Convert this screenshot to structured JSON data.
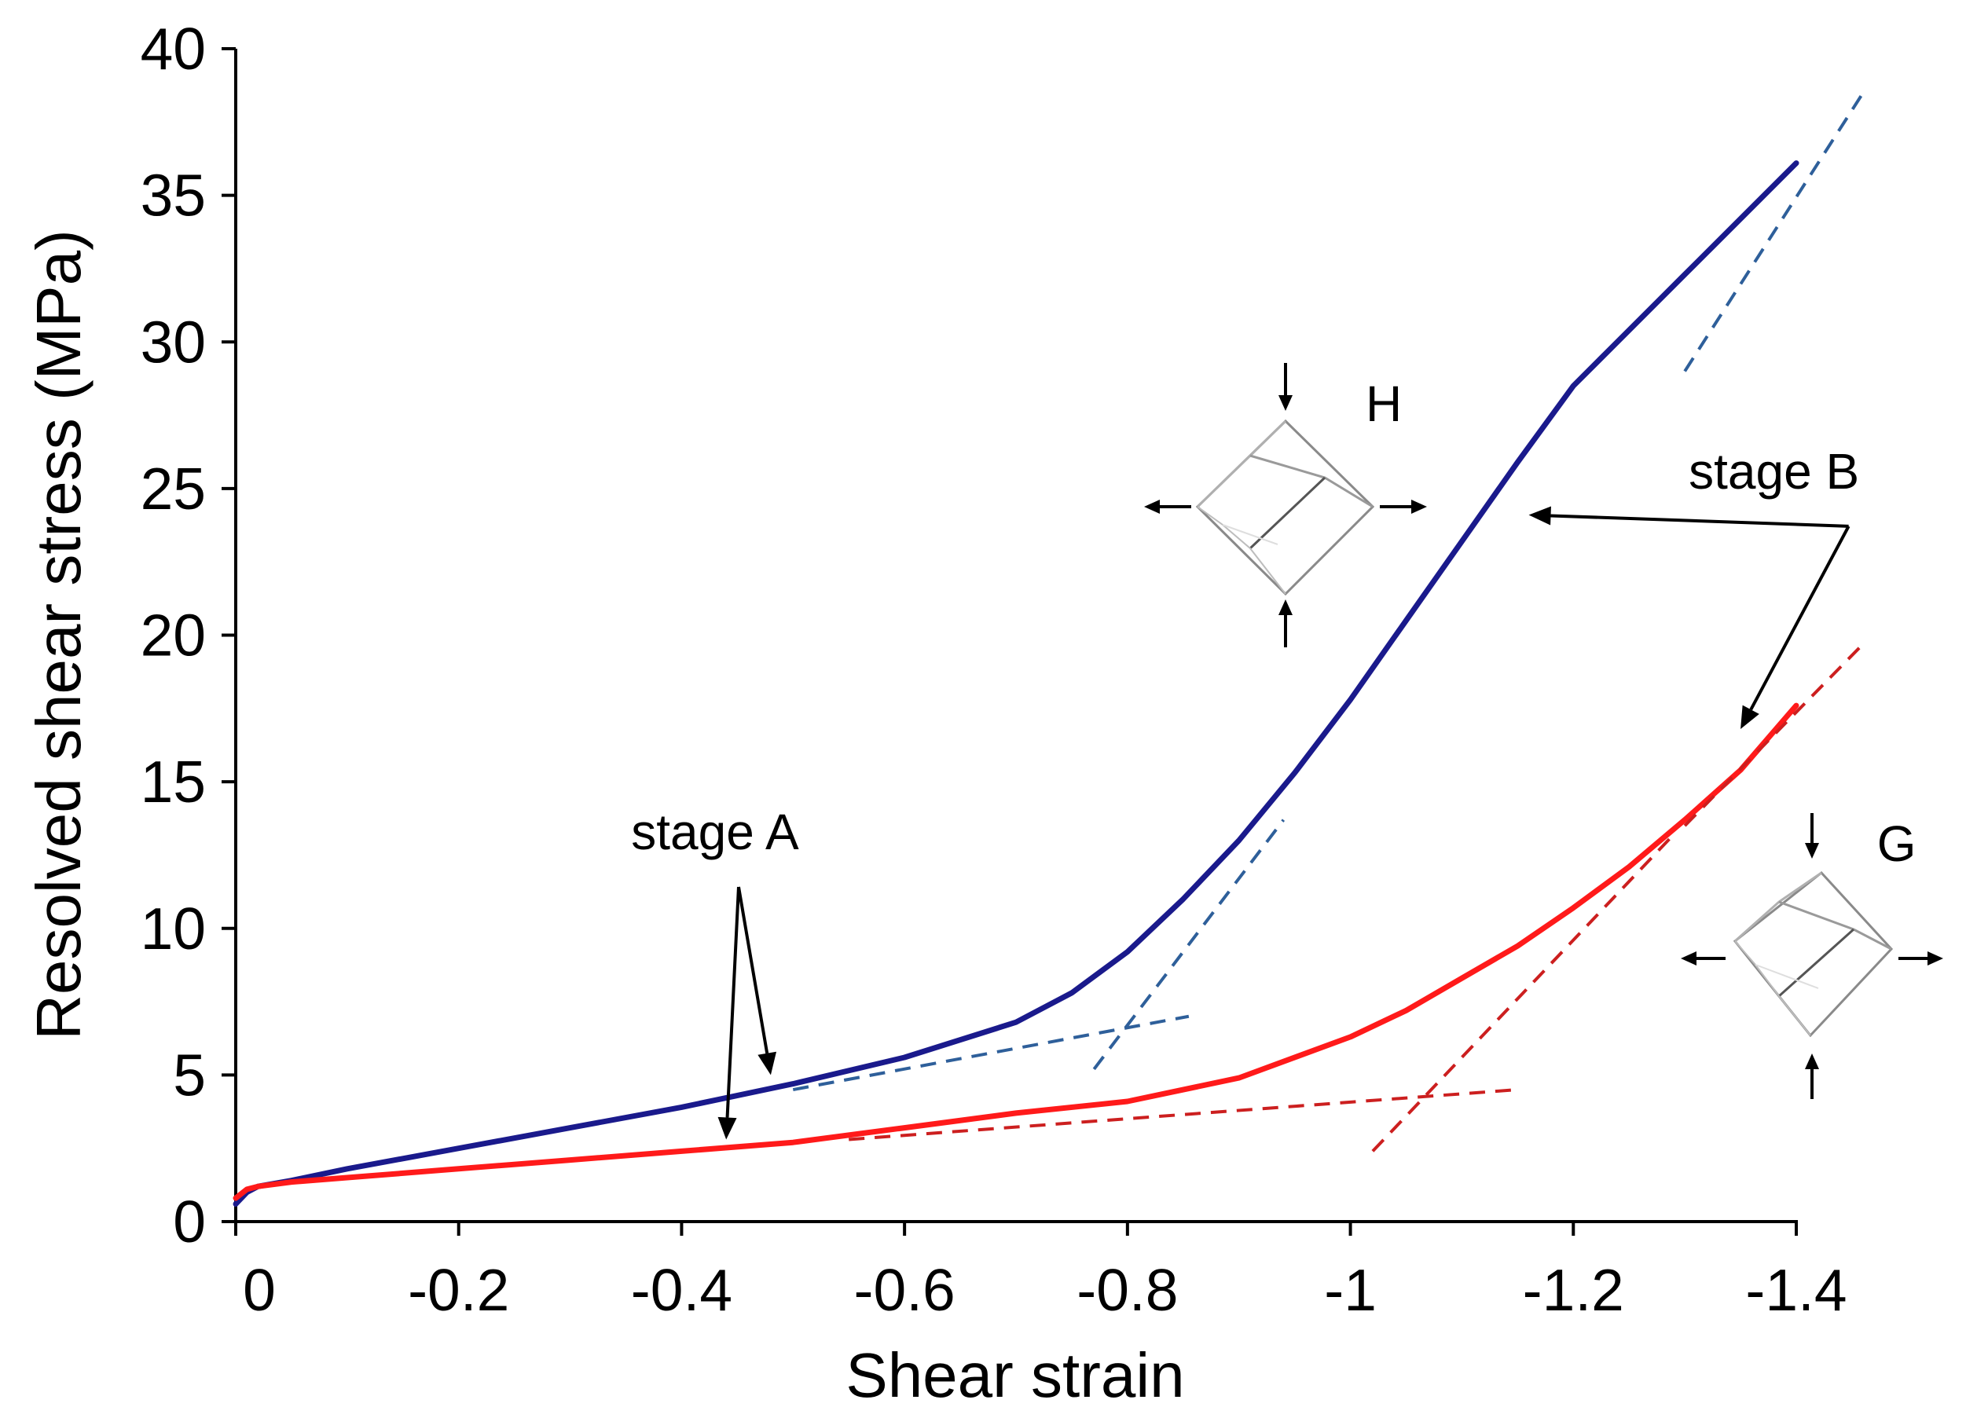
{
  "chart_data": {
    "type": "line",
    "title": "",
    "xlabel": "Shear strain",
    "ylabel": "Resolved shear stress (MPa)",
    "xlim": [
      0.02,
      -1.44
    ],
    "ylim": [
      0,
      40
    ],
    "grid": false,
    "x_ticks": [
      0,
      -0.2,
      -0.4,
      -0.6,
      -0.8,
      -1,
      -1.2,
      -1.4
    ],
    "x_tick_labels": [
      "0",
      "-0.2",
      "-0.4",
      "-0.6",
      "-0.8",
      "-1",
      "-1.2",
      "-1.4"
    ],
    "y_ticks": [
      0,
      5,
      10,
      15,
      20,
      25,
      30,
      35,
      40
    ],
    "y_tick_labels": [
      "0",
      "5",
      "10",
      "15",
      "20",
      "25",
      "30",
      "35",
      "40"
    ],
    "series": [
      {
        "name": "H",
        "color": "#1a1a8c",
        "x": [
          0.0,
          -0.01,
          -0.02,
          -0.05,
          -0.1,
          -0.2,
          -0.3,
          -0.4,
          -0.5,
          -0.6,
          -0.7,
          -0.75,
          -0.8,
          -0.85,
          -0.9,
          -0.95,
          -1.0,
          -1.05,
          -1.1,
          -1.15,
          -1.2,
          -1.3,
          -1.4
        ],
        "y": [
          0.6,
          1.0,
          1.2,
          1.4,
          1.8,
          2.5,
          3.2,
          3.9,
          4.7,
          5.6,
          6.8,
          7.8,
          9.2,
          11.0,
          13.0,
          15.3,
          17.8,
          20.5,
          23.2,
          25.9,
          28.5,
          32.3,
          36.1
        ]
      },
      {
        "name": "G",
        "color": "#ff1a1a",
        "x": [
          0.0,
          -0.01,
          -0.02,
          -0.05,
          -0.1,
          -0.2,
          -0.3,
          -0.4,
          -0.5,
          -0.6,
          -0.7,
          -0.8,
          -0.9,
          -1.0,
          -1.05,
          -1.1,
          -1.15,
          -1.2,
          -1.25,
          -1.3,
          -1.35,
          -1.4
        ],
        "y": [
          0.8,
          1.1,
          1.2,
          1.35,
          1.5,
          1.8,
          2.1,
          2.4,
          2.7,
          3.2,
          3.7,
          4.1,
          4.9,
          6.3,
          7.2,
          8.3,
          9.4,
          10.7,
          12.1,
          13.7,
          15.4,
          17.6
        ]
      }
    ],
    "fit_lines": [
      {
        "color": "#2e5f9a",
        "x": [
          -0.5,
          -0.855
        ],
        "y": [
          4.5,
          7.0
        ]
      },
      {
        "color": "#2e5f9a",
        "x": [
          -0.77,
          -0.94
        ],
        "y": [
          5.2,
          13.7
        ]
      },
      {
        "color": "#2e5f9a",
        "x": [
          -1.3,
          -1.46
        ],
        "y": [
          29.0,
          38.5
        ]
      },
      {
        "color": "#cc1f1f",
        "x": [
          -0.55,
          -1.15
        ],
        "y": [
          2.8,
          4.5
        ]
      },
      {
        "color": "#cc1f1f",
        "x": [
          -1.02,
          -1.29
        ],
        "y": [
          2.4,
          13.2
        ]
      },
      {
        "color": "#cc1f1f",
        "x": [
          -1.3,
          -1.46
        ],
        "y": [
          13.5,
          19.7
        ]
      }
    ],
    "annotations": [
      {
        "text": "stage A",
        "text_at": [
          -0.43,
          12.7
        ],
        "arrows_to": [
          [
            -0.48,
            5.0
          ],
          [
            -0.44,
            2.8
          ]
        ]
      },
      {
        "text": "stage B",
        "text_at": [
          -1.38,
          25.0
        ],
        "arrows_to": [
          [
            -1.16,
            24.1
          ],
          [
            -1.35,
            16.8
          ]
        ]
      },
      {
        "text": "H",
        "text_at": [
          -1.03,
          27.3
        ]
      },
      {
        "text": "G",
        "text_at": [
          -1.49,
          12.3
        ]
      }
    ]
  }
}
